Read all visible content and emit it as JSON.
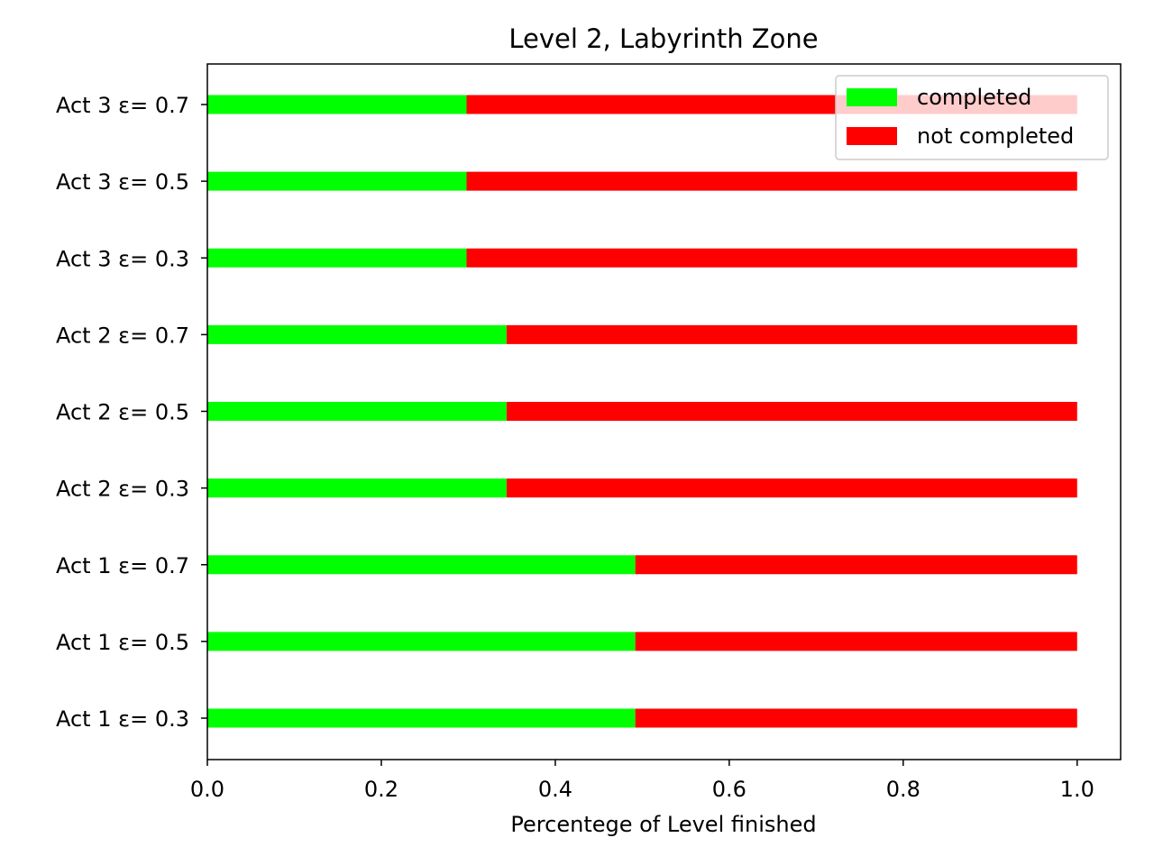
{
  "chart_data": {
    "type": "bar",
    "orientation": "horizontal",
    "stacked": true,
    "title": "Level 2, Labyrinth Zone",
    "xlabel": "Percentege of Level finished",
    "ylabel": "",
    "xlim": [
      0,
      1.05
    ],
    "xticks": [
      {
        "value": 0.0,
        "label": "0.0"
      },
      {
        "value": 0.2,
        "label": "0.2"
      },
      {
        "value": 0.4,
        "label": "0.4"
      },
      {
        "value": 0.6,
        "label": "0.6"
      },
      {
        "value": 0.8,
        "label": "0.8"
      },
      {
        "value": 1.0,
        "label": "1.0"
      }
    ],
    "categories": [
      "Act 1 ε= 0.3",
      "Act 1 ε= 0.5",
      "Act 1 ε= 0.7",
      "Act 2 ε= 0.3",
      "Act 2 ε= 0.5",
      "Act 2 ε= 0.7",
      "Act 3 ε= 0.3",
      "Act 3 ε= 0.5",
      "Act 3 ε= 0.7"
    ],
    "series": [
      {
        "name": "completed",
        "color": "#00ff00",
        "values": [
          0.492,
          0.492,
          0.492,
          0.344,
          0.344,
          0.344,
          0.298,
          0.298,
          0.298
        ]
      },
      {
        "name": "not completed",
        "color": "#ff0000",
        "values": [
          0.508,
          0.508,
          0.508,
          0.656,
          0.656,
          0.656,
          0.702,
          0.702,
          0.702
        ]
      }
    ],
    "grid": false,
    "legend": {
      "position": "top-right"
    }
  }
}
